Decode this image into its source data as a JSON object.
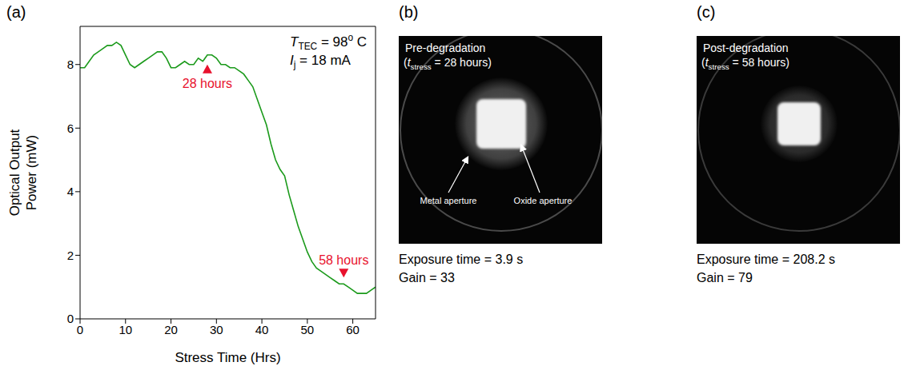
{
  "chart_data": {
    "type": "line",
    "panel": "(a)",
    "xlabel": "Stress Time (Hrs)",
    "ylabel": [
      "Optical Output",
      "Power (mW)"
    ],
    "xlim": [
      0,
      65
    ],
    "xticks": [
      0,
      10,
      20,
      30,
      40,
      50,
      60
    ],
    "ylim": [
      0,
      9.2
    ],
    "yticks": [
      0,
      2,
      4,
      6,
      8
    ],
    "grid": false,
    "x": [
      0,
      1,
      2,
      3,
      4,
      5,
      6,
      7,
      8,
      9,
      10,
      11,
      12,
      13,
      14,
      15,
      16,
      17,
      18,
      19,
      20,
      21,
      22,
      23,
      24,
      25,
      26,
      27,
      28,
      29,
      30,
      31,
      32,
      33,
      34,
      35,
      36,
      37,
      38,
      39,
      40,
      41,
      42,
      43,
      44,
      45,
      46,
      47,
      48,
      49,
      50,
      51,
      52,
      53,
      54,
      55,
      56,
      57,
      58,
      59,
      60,
      61,
      62,
      63,
      64,
      65
    ],
    "series": [
      {
        "color": "#1b9a1b",
        "values": [
          7.9,
          7.9,
          8.1,
          8.3,
          8.4,
          8.5,
          8.6,
          8.6,
          8.7,
          8.6,
          8.3,
          8.0,
          7.9,
          8.0,
          8.1,
          8.2,
          8.3,
          8.4,
          8.4,
          8.2,
          7.9,
          7.9,
          8.0,
          8.1,
          8.0,
          8.0,
          8.2,
          8.1,
          8.3,
          8.3,
          8.2,
          8.0,
          8.0,
          7.9,
          7.9,
          7.8,
          7.7,
          7.5,
          7.3,
          6.9,
          6.5,
          6.1,
          5.5,
          5.0,
          4.7,
          4.5,
          3.9,
          3.4,
          2.9,
          2.5,
          2.1,
          1.8,
          1.6,
          1.5,
          1.4,
          1.3,
          1.2,
          1.1,
          1.1,
          1.0,
          0.9,
          0.8,
          0.8,
          0.8,
          0.9,
          1.0
        ]
      }
    ],
    "annotations": [
      {
        "text": "28 hours",
        "x": 28,
        "y": 8.1,
        "color": "#e8112d"
      },
      {
        "text": "58 hours",
        "x": 58,
        "y": 1.2,
        "color": "#e8112d"
      }
    ],
    "conditions": [
      [
        {
          "text": "T",
          "style": "italic"
        },
        {
          "text": "TEC",
          "style": "subscript"
        },
        {
          "text": " = 98",
          "style": "normal"
        },
        {
          "text": "o",
          "style": "superscript"
        },
        {
          "text": " C",
          "style": "normal"
        }
      ],
      [
        {
          "text": "I",
          "style": "italic"
        },
        {
          "text": "j",
          "style": "subscript"
        },
        {
          "text": " = 18 mA",
          "style": "normal"
        }
      ]
    ]
  },
  "images": [
    {
      "panel": "(b)",
      "title": "Pre-degradation",
      "subtitle": [
        {
          "text": "(",
          "style": "normal"
        },
        {
          "text": "t",
          "style": "italic"
        },
        {
          "text": "stress",
          "style": "subscript"
        },
        {
          "text": " = 28 hours)",
          "style": "normal"
        }
      ],
      "labels": [
        "Metal aperture",
        "Oxide aperture"
      ],
      "caption": [
        "Exposure time = 3.9 s",
        "Gain = 33"
      ]
    },
    {
      "panel": "(c)",
      "title": "Post-degradation",
      "subtitle": [
        {
          "text": "(",
          "style": "normal"
        },
        {
          "text": "t",
          "style": "italic"
        },
        {
          "text": "stress",
          "style": "subscript"
        },
        {
          "text": " = 58 hours)",
          "style": "normal"
        }
      ],
      "labels": [],
      "caption": [
        "Exposure time = 208.2 s",
        "Gain = 79"
      ]
    }
  ]
}
